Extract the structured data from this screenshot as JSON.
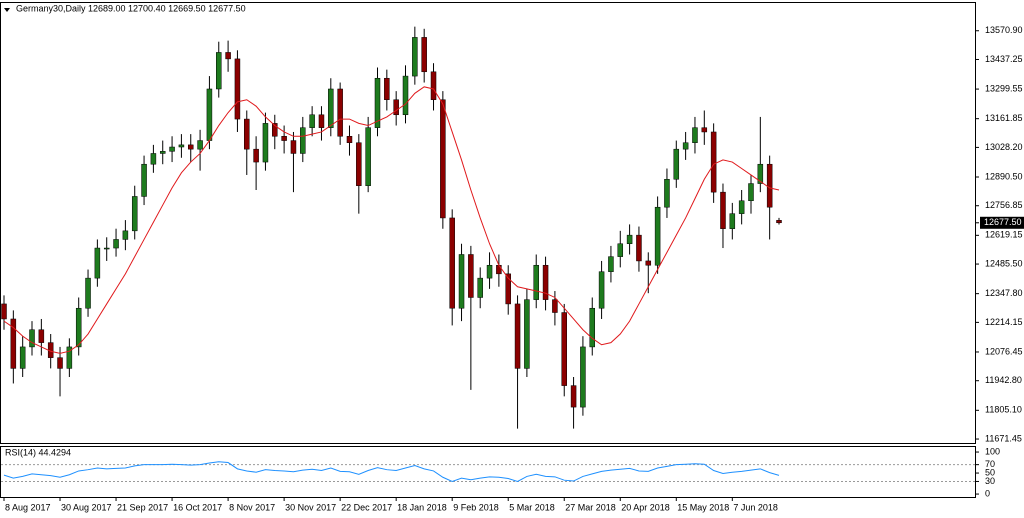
{
  "chart_data": [
    {
      "type": "candlestick",
      "title": "Germany30,Daily",
      "ohlc_label": "12689.00 12700.40 12669.50 12677.50",
      "categories": [
        "8 Aug 2017",
        null,
        null,
        null,
        null,
        null,
        "30 Aug 2017",
        null,
        null,
        null,
        null,
        null,
        "21 Sep 2017",
        null,
        null,
        null,
        null,
        null,
        "16 Oct 2017",
        null,
        null,
        null,
        null,
        null,
        "8 Nov 2017",
        null,
        null,
        null,
        null,
        null,
        "30 Nov 2017",
        null,
        null,
        null,
        null,
        null,
        "22 Dec 2017",
        null,
        null,
        null,
        null,
        null,
        "18 Jan 2018",
        null,
        null,
        null,
        null,
        null,
        "9 Feb 2018",
        null,
        null,
        null,
        null,
        null,
        "5 Mar 2018",
        null,
        null,
        null,
        null,
        null,
        "27 Mar 2018",
        null,
        null,
        null,
        null,
        null,
        "20 Apr 2018",
        null,
        null,
        null,
        null,
        null,
        "15 May 2018",
        null,
        null,
        null,
        null,
        null,
        "7 Jun 2018",
        null,
        null,
        null,
        null,
        null
      ],
      "open": [
        12300,
        12230,
        12000,
        12100,
        12180,
        12120,
        12050,
        12000,
        12100,
        12280,
        12420,
        12560,
        12560,
        12600,
        12640,
        12800,
        12950,
        13000,
        13010,
        13030,
        13040,
        13020,
        13060,
        13300,
        13470,
        13440,
        13160,
        13020,
        12960,
        13140,
        13080,
        13060,
        13000,
        13120,
        13180,
        13120,
        13300,
        13080,
        13050,
        12850,
        13120,
        13350,
        13250,
        13180,
        13360,
        13540,
        13380,
        13250,
        12700,
        12280,
        12530,
        12330,
        12420,
        12480,
        12440,
        12300,
        12000,
        12320,
        12480,
        12320,
        12260,
        11920,
        11820,
        12100,
        12280,
        12450,
        12520,
        12580,
        12620,
        12500,
        12480,
        12750,
        12880,
        13020,
        13050,
        13120,
        13100,
        12820,
        12650,
        12720,
        12780,
        12860,
        12950,
        12689
      ],
      "high": [
        12340,
        12270,
        12150,
        12220,
        12230,
        12160,
        12100,
        12140,
        12330,
        12460,
        12600,
        12610,
        12650,
        12690,
        12850,
        12990,
        13040,
        13060,
        13080,
        13090,
        13090,
        13110,
        13360,
        13520,
        13525,
        13480,
        13200,
        13080,
        13190,
        13180,
        13130,
        13100,
        13170,
        13220,
        13220,
        13350,
        13330,
        13130,
        13090,
        13170,
        13400,
        13390,
        13290,
        13410,
        13590,
        13580,
        13420,
        13290,
        12740,
        12580,
        12570,
        12470,
        12540,
        12530,
        12480,
        12340,
        12370,
        12530,
        12520,
        12360,
        12300,
        11960,
        12150,
        12330,
        12500,
        12570,
        12640,
        12670,
        12660,
        12540,
        12800,
        12930,
        13060,
        13100,
        13170,
        13200,
        13140,
        12860,
        12770,
        12830,
        12900,
        13170,
        12990,
        12700.4
      ],
      "low": [
        12180,
        11930,
        11960,
        12060,
        12060,
        12000,
        11870,
        11960,
        12060,
        12240,
        12380,
        12500,
        12520,
        12550,
        12600,
        12760,
        12910,
        12950,
        12960,
        12980,
        12960,
        12920,
        13020,
        13260,
        13380,
        13100,
        12900,
        12830,
        12920,
        13020,
        13000,
        12820,
        12960,
        13080,
        13060,
        13080,
        13040,
        12990,
        12720,
        12820,
        13080,
        13200,
        13130,
        13140,
        13320,
        13330,
        13200,
        12650,
        12200,
        12220,
        11900,
        12280,
        12370,
        12380,
        12250,
        11720,
        11960,
        12280,
        12270,
        12200,
        11870,
        11720,
        11780,
        12060,
        12230,
        12400,
        12470,
        12530,
        12450,
        12350,
        12440,
        12700,
        12840,
        12970,
        13000,
        13040,
        12770,
        12560,
        12600,
        12670,
        12720,
        12820,
        12600,
        12669.5
      ],
      "close": [
        12230,
        12000,
        12100,
        12180,
        12120,
        12050,
        12000,
        12100,
        12280,
        12420,
        12560,
        12560,
        12600,
        12640,
        12800,
        12950,
        13000,
        13010,
        13030,
        13040,
        13020,
        13060,
        13300,
        13470,
        13440,
        13160,
        13020,
        12960,
        13140,
        13080,
        13060,
        13000,
        13120,
        13180,
        13120,
        13300,
        13080,
        13050,
        12850,
        13120,
        13350,
        13250,
        13180,
        13360,
        13540,
        13380,
        13250,
        12700,
        12280,
        12530,
        12330,
        12420,
        12480,
        12440,
        12300,
        12000,
        12320,
        12480,
        12320,
        12260,
        11920,
        11820,
        12100,
        12280,
        12450,
        12520,
        12580,
        12620,
        12500,
        12480,
        12750,
        12880,
        13020,
        13050,
        13120,
        13100,
        12820,
        12650,
        12720,
        12780,
        12860,
        12950,
        12750,
        12677.5
      ],
      "up_color": "#1e7b1e",
      "down_color": "#8b0000",
      "wick_color": "#000000",
      "ma": {
        "color": "#e0191c",
        "values": [
          12220,
          12190,
          12150,
          12120,
          12100,
          12080,
          12070,
          12080,
          12110,
          12160,
          12230,
          12300,
          12370,
          12440,
          12520,
          12600,
          12680,
          12760,
          12840,
          12910,
          12960,
          13000,
          13060,
          13130,
          13190,
          13240,
          13250,
          13220,
          13170,
          13130,
          13100,
          13080,
          13080,
          13090,
          13100,
          13130,
          13160,
          13160,
          13140,
          13130,
          13150,
          13170,
          13200,
          13230,
          13280,
          13310,
          13300,
          13230,
          13100,
          12970,
          12830,
          12700,
          12580,
          12480,
          12420,
          12380,
          12370,
          12360,
          12350,
          12330,
          12280,
          12230,
          12180,
          12140,
          12110,
          12120,
          12160,
          12220,
          12300,
          12380,
          12460,
          12540,
          12620,
          12700,
          12790,
          12880,
          12950,
          12970,
          12960,
          12930,
          12900,
          12870,
          12840,
          12830
        ]
      },
      "last_price": {
        "value": 12677.5,
        "label": "12677.50"
      },
      "ylim": [
        11653,
        13700
      ],
      "yticks": [
        {
          "value": 13570.9,
          "label": "13570.90"
        },
        {
          "value": 13437.25,
          "label": "13437.25"
        },
        {
          "value": 13299.55,
          "label": "13299.55"
        },
        {
          "value": 13161.85,
          "label": "13161.85"
        },
        {
          "value": 13028.2,
          "label": "13028.20"
        },
        {
          "value": 12890.5,
          "label": "12890.50"
        },
        {
          "value": 12756.85,
          "label": "12756.85"
        },
        {
          "value": 12619.15,
          "label": "12619.15"
        },
        {
          "value": 12485.5,
          "label": "12485.50"
        },
        {
          "value": 12347.8,
          "label": "12347.80"
        },
        {
          "value": 12214.15,
          "label": "12214.15"
        },
        {
          "value": 12076.45,
          "label": "12076.45"
        },
        {
          "value": 11942.8,
          "label": "11942.80"
        },
        {
          "value": 11805.1,
          "label": "11805.10"
        },
        {
          "value": 11671.45,
          "label": "11671.45"
        }
      ]
    },
    {
      "type": "line",
      "title": "RSI(14) 44.4294",
      "series": [
        {
          "color": "#1e90ff",
          "values": [
            45,
            38,
            42,
            48,
            46,
            44,
            40,
            46,
            55,
            58,
            62,
            60,
            61,
            62,
            67,
            70,
            70,
            70,
            71,
            70,
            69,
            70,
            74,
            77,
            75,
            60,
            55,
            52,
            58,
            56,
            55,
            53,
            57,
            59,
            56,
            62,
            54,
            53,
            47,
            56,
            63,
            58,
            56,
            62,
            68,
            60,
            55,
            40,
            30,
            38,
            34,
            38,
            41,
            40,
            37,
            30,
            42,
            47,
            42,
            41,
            33,
            31,
            42,
            48,
            54,
            57,
            59,
            61,
            55,
            54,
            62,
            66,
            70,
            71,
            72,
            71,
            56,
            49,
            52,
            54,
            57,
            60,
            51,
            44.4294
          ]
        }
      ],
      "levels": [
        70,
        30
      ],
      "ylim": [
        -7,
        112
      ],
      "yticks": [
        100,
        70,
        50,
        30,
        0
      ]
    }
  ]
}
